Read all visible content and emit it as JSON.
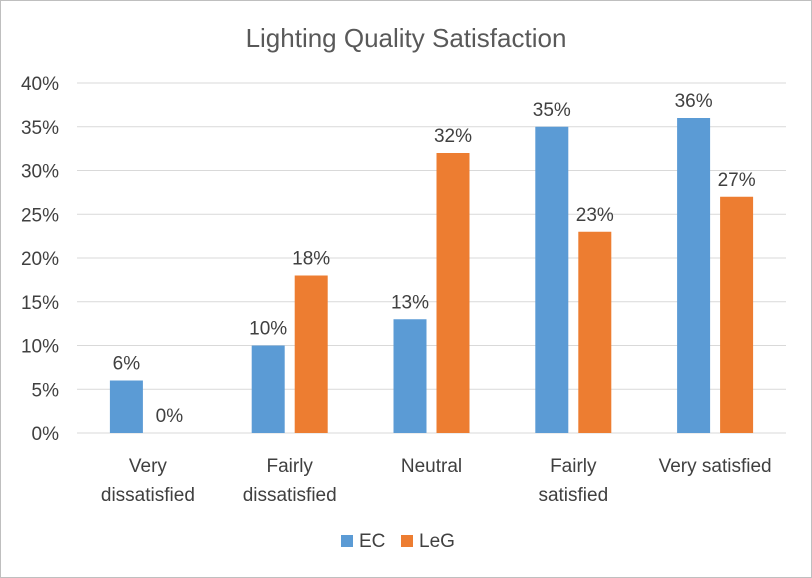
{
  "chart_data": {
    "type": "bar",
    "title": "Lighting Quality Satisfaction",
    "xlabel": "",
    "ylabel": "",
    "categories": [
      [
        "Very",
        "dissatisfied"
      ],
      [
        "Fairly",
        "dissatisfied"
      ],
      [
        "Neutral"
      ],
      [
        "Fairly",
        "satisfied"
      ],
      [
        "Very satisfied"
      ]
    ],
    "series": [
      {
        "name": "EC",
        "color": "#5b9bd5",
        "values": [
          0.06,
          0.1,
          0.13,
          0.35,
          0.36
        ],
        "labels": [
          "6%",
          "10%",
          "13%",
          "35%",
          "36%"
        ]
      },
      {
        "name": "LeG",
        "color": "#ed7d31",
        "values": [
          0.0,
          0.18,
          0.32,
          0.23,
          0.27
        ],
        "labels": [
          "0%",
          "18%",
          "32%",
          "23%",
          "27%"
        ]
      }
    ],
    "ylim": [
      0,
      0.4
    ],
    "yticks": [
      0,
      0.05,
      0.1,
      0.15,
      0.2,
      0.25,
      0.3,
      0.35,
      0.4
    ],
    "ytick_labels": [
      "0%",
      "5%",
      "10%",
      "15%",
      "20%",
      "25%",
      "30%",
      "35%",
      "40%"
    ],
    "grid": true,
    "legend_position": "bottom"
  }
}
